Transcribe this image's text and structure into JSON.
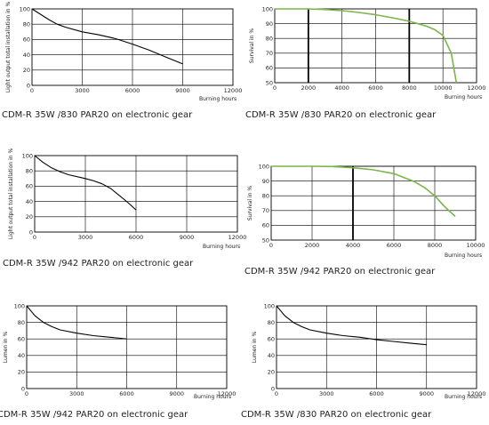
{
  "chart_data": [
    {
      "type": "line",
      "caption": "CDM-R 35W /830 PAR20 on electronic gear",
      "ylabel": "Light output total installation in %",
      "xlabel": "Burning hours",
      "xlim": [
        0,
        12000
      ],
      "ylim": [
        0,
        100
      ],
      "xticks": [
        0,
        3000,
        6000,
        9000,
        12000
      ],
      "x_tick_labels": [
        "0",
        "3000",
        "6000",
        "9000",
        "12000"
      ],
      "yticks": [
        0,
        20,
        40,
        60,
        80,
        100
      ],
      "y_tick_labels": [
        "0",
        "20",
        "40",
        "60",
        "80",
        "100"
      ],
      "line_color": "#000000",
      "series": [
        {
          "x": [
            0,
            500,
            1000,
            1500,
            2000,
            3000,
            4000,
            5000,
            6000,
            7000,
            8000,
            9000
          ],
          "values": [
            100,
            93,
            86,
            80,
            76,
            70,
            66,
            61,
            54,
            46,
            37,
            28
          ]
        }
      ]
    },
    {
      "type": "line",
      "caption": "CDM-R 35W /830 PAR20 on electronic gear",
      "ylabel": "Survival in %",
      "xlabel": "Burning hours",
      "xlim": [
        0,
        12000
      ],
      "ylim": [
        50,
        100
      ],
      "xticks": [
        0,
        2000,
        4000,
        6000,
        8000,
        10000,
        12000
      ],
      "x_tick_labels": [
        "0",
        "2000",
        "4000",
        "6000",
        "8000",
        "10000",
        "12000"
      ],
      "yticks": [
        50,
        60,
        70,
        80,
        90,
        100
      ],
      "y_tick_labels": [
        "50",
        "60",
        "70",
        "80",
        "90",
        "100"
      ],
      "bold_gridlines_x": [
        2000,
        8000
      ],
      "line_color": "#7ab648",
      "series": [
        {
          "x": [
            0,
            2000,
            3000,
            4000,
            5000,
            6000,
            7000,
            8000,
            9000,
            9500,
            10000,
            10500,
            10800
          ],
          "values": [
            100,
            100,
            99.6,
            98.8,
            97.6,
            96,
            94,
            91.6,
            88.4,
            86,
            82,
            70,
            50
          ]
        }
      ]
    },
    {
      "type": "line",
      "caption": "CDM-R 35W /942 PAR20 on electronic gear",
      "ylabel": "Light output total installation in %",
      "xlabel": "Burning hours",
      "xlim": [
        0,
        12000
      ],
      "ylim": [
        0,
        100
      ],
      "xticks": [
        0,
        3000,
        6000,
        9000,
        12000
      ],
      "x_tick_labels": [
        "0",
        "3000",
        "6000",
        "9000",
        "12000"
      ],
      "yticks": [
        0,
        20,
        40,
        60,
        80,
        100
      ],
      "y_tick_labels": [
        "0",
        "20",
        "40",
        "60",
        "80",
        "100"
      ],
      "line_color": "#000000",
      "series": [
        {
          "x": [
            0,
            500,
            1000,
            1500,
            2000,
            3000,
            3500,
            4000,
            4500,
            5000,
            5500,
            6000
          ],
          "values": [
            100,
            91,
            84,
            79,
            75,
            70,
            67,
            63,
            57,
            48,
            39,
            29
          ]
        }
      ]
    },
    {
      "type": "line",
      "caption": "CDM-R 35W /942 PAR20 on electronic gear",
      "ylabel": "Survival in %",
      "xlabel": "Burning hours",
      "xlim": [
        0,
        10000
      ],
      "ylim": [
        50,
        100
      ],
      "xticks": [
        0,
        2000,
        4000,
        6000,
        8000,
        10000
      ],
      "x_tick_labels": [
        "0",
        "2000",
        "4000",
        "6000",
        "8000",
        "10000"
      ],
      "yticks": [
        50,
        60,
        70,
        80,
        90,
        100
      ],
      "y_tick_labels": [
        "50",
        "60",
        "70",
        "80",
        "90",
        "100"
      ],
      "bold_gridlines_x": [
        4000
      ],
      "line_color": "#7ab648",
      "series": [
        {
          "x": [
            0,
            2000,
            3000,
            4000,
            5000,
            6000,
            7000,
            7500,
            8000,
            8500,
            9000
          ],
          "values": [
            100,
            100,
            99.8,
            99,
            97.6,
            95,
            89.6,
            85.6,
            80,
            72.4,
            66
          ]
        }
      ]
    },
    {
      "type": "line",
      "caption": "CDM-R 35W /942 PAR20 on electronic gear",
      "ylabel": "Lumen in %",
      "xlabel": "Burning hours",
      "xlim": [
        0,
        12000
      ],
      "ylim": [
        0,
        100
      ],
      "xticks": [
        0,
        3000,
        6000,
        9000,
        12000
      ],
      "x_tick_labels": [
        "0",
        "3000",
        "6000",
        "9000",
        "12000"
      ],
      "yticks": [
        0,
        20,
        40,
        60,
        80,
        100
      ],
      "y_tick_labels": [
        "0",
        "20",
        "40",
        "60",
        "80",
        "100"
      ],
      "line_color": "#000000",
      "series": [
        {
          "x": [
            0,
            500,
            1000,
            1500,
            2000,
            3000,
            4000,
            5000,
            6000
          ],
          "values": [
            100,
            88,
            80,
            75,
            71,
            67,
            64,
            62,
            60
          ]
        }
      ]
    },
    {
      "type": "line",
      "caption": "CDM-R 35W /830 PAR20 on electronic gear",
      "ylabel": "Lumen in %",
      "xlabel": "Burning hours",
      "xlim": [
        0,
        12000
      ],
      "ylim": [
        0,
        100
      ],
      "xticks": [
        0,
        3000,
        6000,
        9000,
        12000
      ],
      "x_tick_labels": [
        "0",
        "3000",
        "6000",
        "9000",
        "12000"
      ],
      "yticks": [
        0,
        20,
        40,
        60,
        80,
        100
      ],
      "y_tick_labels": [
        "0",
        "20",
        "40",
        "60",
        "80",
        "100"
      ],
      "line_color": "#000000",
      "series": [
        {
          "x": [
            0,
            500,
            1000,
            1500,
            2000,
            3000,
            4000,
            5000,
            6000,
            7000,
            8000,
            9000
          ],
          "values": [
            100,
            88,
            80,
            75,
            71,
            67,
            64,
            62,
            59,
            57,
            55,
            53
          ]
        }
      ]
    }
  ]
}
